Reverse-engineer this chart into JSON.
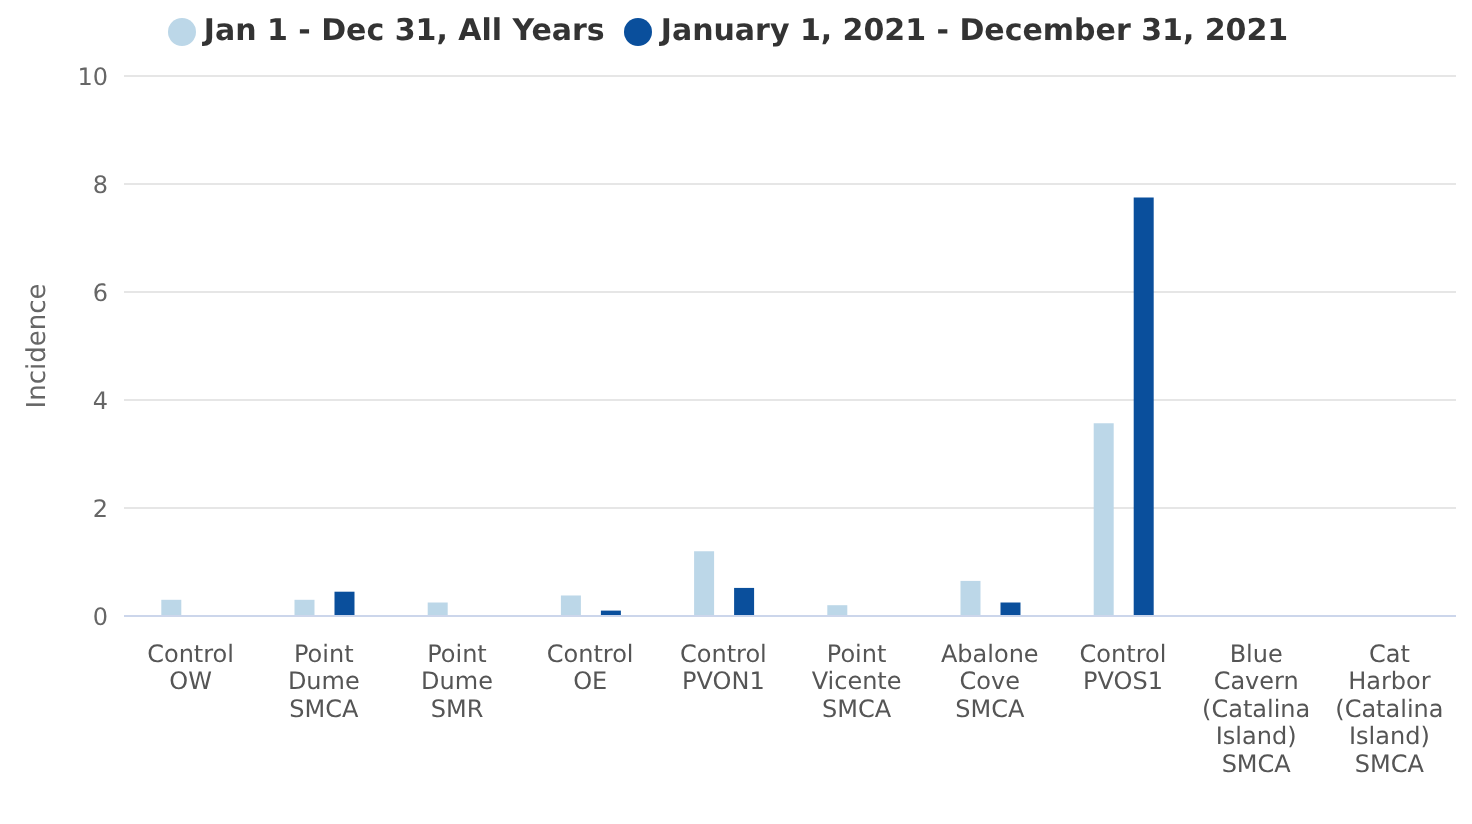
{
  "chart_data": {
    "type": "bar",
    "ylabel": "Incidence",
    "categories": [
      "Control OW",
      "Point Dume SMCA",
      "Point Dume SMR",
      "Control OE",
      "Control PVON1",
      "Point Vicente SMCA",
      "Abalone Cove SMCA",
      "Control PVOS1",
      "Blue Cavern (Catalina Island) SMCA",
      "Cat Harbor (Catalina Island) SMCA"
    ],
    "series": [
      {
        "name": "Jan 1 - Dec 31, All Years",
        "color": "#bcd7e8",
        "values": [
          0.3,
          0.3,
          0.25,
          0.38,
          1.2,
          0.2,
          0.65,
          3.57,
          0,
          0
        ]
      },
      {
        "name": "January 1, 2021 - December 31, 2021",
        "color": "#0a4f9c",
        "values": [
          0,
          0.45,
          0,
          0.1,
          0.52,
          0,
          0.25,
          7.75,
          0,
          0
        ]
      }
    ],
    "ylim": [
      0,
      10
    ],
    "yticks": [
      0,
      2,
      4,
      6,
      8,
      10
    ],
    "grid": "y",
    "legend": "top"
  }
}
